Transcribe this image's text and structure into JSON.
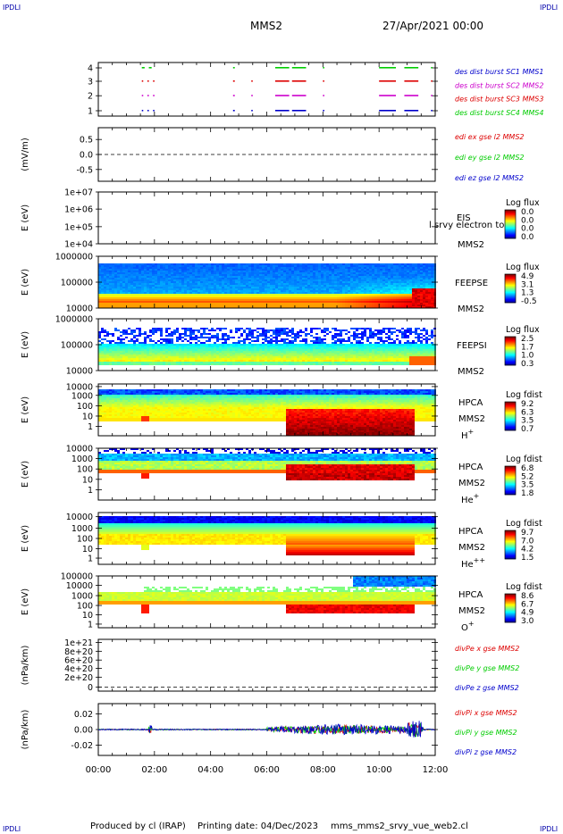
{
  "header": {
    "corner_left_top": "IPDLI",
    "corner_right_top": "IPDLI",
    "title": "MMS2",
    "date": "27/Apr/2021 00:00",
    "corner_left_bottom": "IPDLI",
    "corner_right_bottom": "IPDLI"
  },
  "footer": {
    "producer": "Produced by cl (IRAP)",
    "printing": "Printing date: 04/Dec/2023",
    "file": "mms_mms2_srvy_vue_web2.cl"
  },
  "colors": {
    "series_red": "#dd0000",
    "series_green": "#00cc00",
    "series_blue": "#0000cc",
    "series_magenta": "#cc00cc",
    "corner_text": "#0000aa"
  },
  "chart_data": {
    "type": "multi-panel time series",
    "x_axis": {
      "range": [
        "00:00",
        "12:00"
      ],
      "ticks": [
        "00:00",
        "02:00",
        "04:00",
        "06:00",
        "08:00",
        "10:00",
        "12:00"
      ]
    },
    "panels": [
      {
        "id": "burst",
        "ylabel": "",
        "y_ticks": [
          "4",
          "3",
          "2",
          "1"
        ],
        "legend": [
          {
            "text": "des dist burst SC1 MMS1",
            "color": "#0000cc"
          },
          {
            "text": "des dist burst SC2 MMS2",
            "color": "#cc00cc"
          },
          {
            "text": "des dist burst SC3 MMS3",
            "color": "#dd0000"
          },
          {
            "text": "des dist burst SC4 MMS4",
            "color": "#00cc00"
          }
        ]
      },
      {
        "id": "edi",
        "ylabel": "(mV/m)",
        "y_ticks": [
          "0.5",
          "0.0",
          "-0.5"
        ],
        "ylim": [
          -0.9,
          0.9
        ],
        "legend": [
          {
            "text": "edi ex gse l2 MMS2",
            "color": "#dd0000"
          },
          {
            "text": "edi ey gse l2 MMS2",
            "color": "#00cc00"
          },
          {
            "text": "edi ez gse l2 MMS2",
            "color": "#0000cc"
          }
        ]
      },
      {
        "id": "eis",
        "ylabel": "E (eV)",
        "y_ticks": [
          "1e+07",
          "1e+06",
          "1e+05",
          "1e+04"
        ],
        "labels": [
          "EIS",
          "MMS2"
        ],
        "overlay_text": "l srvy electron to",
        "colorbar": {
          "title": "Log flux",
          "ticks": [
            "0.0",
            "0.0",
            "0.0",
            "0.0"
          ]
        }
      },
      {
        "id": "feepse",
        "ylabel": "E (eV)",
        "y_ticks": [
          "1000000",
          "100000",
          "10000"
        ],
        "labels": [
          "FEEPSE",
          "MMS2"
        ],
        "colorbar": {
          "title": "Log flux",
          "ticks": [
            "4.9",
            "3.1",
            "1.3",
            "-0.5"
          ]
        }
      },
      {
        "id": "feepsi",
        "ylabel": "E (eV)",
        "y_ticks": [
          "1000000",
          "100000",
          "10000"
        ],
        "labels": [
          "FEEPSI",
          "MMS2"
        ],
        "colorbar": {
          "title": "Log flux",
          "ticks": [
            "2.5",
            "1.7",
            "1.0",
            "0.3"
          ]
        }
      },
      {
        "id": "hpca_h",
        "ylabel": "E (eV)",
        "y_ticks": [
          "10000",
          "1000",
          "100",
          "10",
          "1"
        ],
        "labels": [
          "HPCA",
          "MMS2",
          "H+"
        ],
        "colorbar": {
          "title": "Log fdist",
          "ticks": [
            "9.2",
            "6.3",
            "3.5",
            "0.7"
          ]
        }
      },
      {
        "id": "hpca_he",
        "ylabel": "E (eV)",
        "y_ticks": [
          "10000",
          "1000",
          "100",
          "10",
          "1"
        ],
        "labels": [
          "HPCA",
          "MMS2",
          "He+"
        ],
        "colorbar": {
          "title": "Log fdist",
          "ticks": [
            "6.8",
            "5.2",
            "3.5",
            "1.8"
          ]
        }
      },
      {
        "id": "hpca_hepp",
        "ylabel": "E (eV)",
        "y_ticks": [
          "10000",
          "1000",
          "100",
          "10",
          "1"
        ],
        "labels": [
          "HPCA",
          "MMS2",
          "He++"
        ],
        "colorbar": {
          "title": "Log fdist",
          "ticks": [
            "9.7",
            "7.0",
            "4.2",
            "1.5"
          ]
        }
      },
      {
        "id": "hpca_o",
        "ylabel": "E (eV)",
        "y_ticks": [
          "100000",
          "10000",
          "1000",
          "100",
          "10",
          "1"
        ],
        "labels": [
          "HPCA",
          "MMS2",
          "O+"
        ],
        "colorbar": {
          "title": "Log fdist",
          "ticks": [
            "8.6",
            "6.7",
            "4.9",
            "3.0"
          ]
        }
      },
      {
        "id": "divpe",
        "ylabel": "(nPa/km)",
        "y_ticks": [
          "1e+21",
          "8e+20",
          "6e+20",
          "4e+20",
          "2e+20",
          "0"
        ],
        "ylim": [
          -3e+19,
          1.05e+21
        ],
        "legend": [
          {
            "text": "divPe x gse MMS2",
            "color": "#dd0000"
          },
          {
            "text": "divPe y gse MMS2",
            "color": "#00cc00"
          },
          {
            "text": "divPe z gse MMS2",
            "color": "#0000cc"
          }
        ]
      },
      {
        "id": "divpi",
        "ylabel": "(nPa/km)",
        "y_ticks": [
          "0.02",
          "0.00",
          "-0.02"
        ],
        "ylim": [
          -0.034,
          0.034
        ],
        "legend": [
          {
            "text": "divPi x gse MMS2",
            "color": "#dd0000"
          },
          {
            "text": "divPi y gse MMS2",
            "color": "#00cc00"
          },
          {
            "text": "divPi z gse MMS2",
            "color": "#0000cc"
          }
        ]
      }
    ],
    "burst_intervals": [
      {
        "sc": 4,
        "color": "#00cc00",
        "hours": [
          [
            1.55,
            1.65
          ],
          [
            1.8,
            1.9
          ],
          [
            4.8,
            4.86
          ],
          [
            6.3,
            6.8
          ],
          [
            6.9,
            7.4
          ],
          [
            8.0,
            8.05
          ],
          [
            10.0,
            10.6
          ],
          [
            10.9,
            11.4
          ],
          [
            11.85,
            11.9
          ]
        ]
      },
      {
        "sc": 3,
        "color": "#dd0000",
        "hours": [
          [
            1.55,
            1.6
          ],
          [
            1.75,
            1.8
          ],
          [
            1.95,
            2.0
          ],
          [
            4.8,
            4.86
          ],
          [
            5.45,
            5.5
          ],
          [
            6.3,
            6.8
          ],
          [
            6.9,
            7.4
          ],
          [
            8.0,
            8.05
          ],
          [
            10.0,
            10.6
          ],
          [
            10.9,
            11.4
          ],
          [
            11.85,
            11.9
          ]
        ]
      },
      {
        "sc": 2,
        "color": "#cc00cc",
        "hours": [
          [
            1.55,
            1.6
          ],
          [
            1.75,
            1.8
          ],
          [
            1.95,
            2.0
          ],
          [
            4.8,
            4.86
          ],
          [
            5.45,
            5.5
          ],
          [
            6.3,
            6.8
          ],
          [
            6.9,
            7.4
          ],
          [
            8.0,
            8.05
          ],
          [
            10.0,
            10.6
          ],
          [
            10.9,
            11.4
          ],
          [
            11.85,
            11.9
          ]
        ]
      },
      {
        "sc": 1,
        "color": "#0000cc",
        "hours": [
          [
            1.55,
            1.6
          ],
          [
            1.75,
            1.8
          ],
          [
            1.95,
            2.0
          ],
          [
            4.8,
            4.86
          ],
          [
            5.45,
            5.5
          ],
          [
            6.3,
            6.8
          ],
          [
            6.9,
            7.4
          ],
          [
            8.0,
            8.05
          ],
          [
            10.0,
            10.6
          ],
          [
            10.9,
            11.4
          ],
          [
            11.85,
            11.9
          ]
        ]
      }
    ]
  }
}
